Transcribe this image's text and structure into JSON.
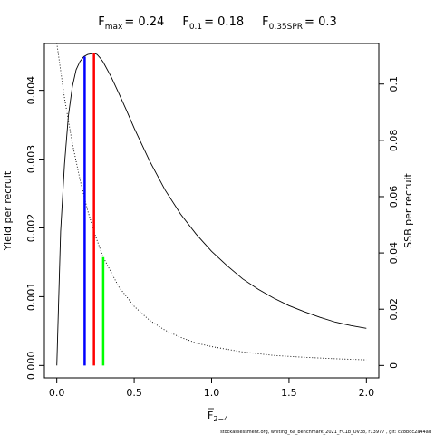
{
  "chart_data": {
    "type": "line",
    "title": {
      "parts": [
        {
          "base": "F",
          "sub": "max",
          "value": "= 0.24"
        },
        {
          "base": "F",
          "sub": "0.1",
          "value": "= 0.18"
        },
        {
          "base": "F",
          "sub": "0.35SPR",
          "value": "= 0.3"
        }
      ]
    },
    "xlabel": {
      "base": "F",
      "sub": "2−4",
      "overline": true
    },
    "ylabel_left": "Yield per recruit",
    "ylabel_right": "SSB per recruit",
    "xlim": [
      0,
      2
    ],
    "ylim_left": [
      0,
      0.0045
    ],
    "ylim_right": [
      0,
      0.11
    ],
    "x_ticks": [
      {
        "value": 0,
        "label": "0.0"
      },
      {
        "value": 0.5,
        "label": "0.5"
      },
      {
        "value": 1,
        "label": "1.0"
      },
      {
        "value": 1.5,
        "label": "1.5"
      },
      {
        "value": 2,
        "label": "2.0"
      }
    ],
    "y_ticks_left": [
      {
        "value": 0,
        "label": "0.000"
      },
      {
        "value": 0.001,
        "label": "0.001"
      },
      {
        "value": 0.002,
        "label": "0.002"
      },
      {
        "value": 0.003,
        "label": "0.003"
      },
      {
        "value": 0.004,
        "label": "0.004"
      }
    ],
    "y_ticks_right": [
      {
        "value": 0,
        "label": "0"
      },
      {
        "value": 0.02,
        "label": "0.02"
      },
      {
        "value": 0.04,
        "label": "0.04"
      },
      {
        "value": 0.06,
        "label": "0.06"
      },
      {
        "value": 0.08,
        "label": "0.08"
      },
      {
        "value": 0.1,
        "label": "0.1"
      }
    ],
    "series": [
      {
        "axis": "left",
        "style": "solid",
        "color": "#000000",
        "x": [
          0,
          0.025,
          0.05,
          0.075,
          0.1,
          0.125,
          0.15,
          0.175,
          0.2,
          0.22,
          0.24,
          0.26,
          0.28,
          0.3,
          0.35,
          0.4,
          0.45,
          0.5,
          0.6,
          0.7,
          0.8,
          0.9,
          1.0,
          1.1,
          1.2,
          1.3,
          1.4,
          1.5,
          1.6,
          1.7,
          1.8,
          1.9,
          2.0
        ],
        "y": [
          0,
          0.00195,
          0.00293,
          0.00363,
          0.00405,
          0.0043,
          0.00442,
          0.00449,
          0.00452,
          0.00453,
          0.00454,
          0.00452,
          0.00447,
          0.00441,
          0.0042,
          0.00396,
          0.00371,
          0.00345,
          0.00297,
          0.00255,
          0.0022,
          0.00191,
          0.00166,
          0.00145,
          0.00126,
          0.00111,
          0.00098,
          0.00087,
          0.00078,
          0.0007,
          0.00063,
          0.00058,
          0.00054
        ]
      },
      {
        "axis": "right",
        "style": "dotted",
        "color": "#000000",
        "x": [
          0,
          0.05,
          0.1,
          0.15,
          0.2,
          0.25,
          0.3,
          0.4,
          0.5,
          0.6,
          0.7,
          0.8,
          0.9,
          1.0,
          1.2,
          1.4,
          1.6,
          1.8,
          2.0
        ],
        "y": [
          0.1145,
          0.095,
          0.079,
          0.066,
          0.055,
          0.046,
          0.0385,
          0.028,
          0.021,
          0.016,
          0.0125,
          0.01,
          0.008,
          0.0067,
          0.0048,
          0.0036,
          0.0029,
          0.0024,
          0.002
        ]
      }
    ],
    "reference_lines": [
      {
        "name": "Fmax",
        "x": 0.24,
        "axis": "left",
        "y_top": 0.00454,
        "color": "#ff0000"
      },
      {
        "name": "F0.1",
        "x": 0.18,
        "axis": "left",
        "y_top": 0.00449,
        "color": "#0000ff"
      },
      {
        "name": "F0.35SPR",
        "x": 0.3,
        "axis": "right",
        "y_top": 0.0385,
        "color": "#00ff00"
      }
    ],
    "footer": "stockassessment.org,  whiting_6a_benchmark_2021_FC1b_OV38,  r13977 ,  git: c28bdc2a44ad"
  }
}
